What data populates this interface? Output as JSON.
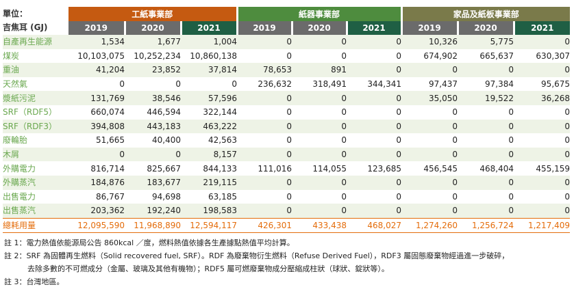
{
  "unit_label_1": "單位：",
  "unit_label_2": "吉焦耳 (GJ)",
  "colors": {
    "paper_header": "#c55a11",
    "carton_header": "#4e8c3e",
    "household_header": "#7a7a4a",
    "year_light": "#6b6b6b",
    "year_dark": "#1f5f44",
    "row_label": "#6aa84f",
    "total": "#e46c0a",
    "alt_row": "#eef3e6"
  },
  "divisions": [
    {
      "name": "工紙事業部",
      "years": [
        "2019",
        "2020",
        "2021"
      ]
    },
    {
      "name": "紙器事業部",
      "years": [
        "2019",
        "2020",
        "2021"
      ]
    },
    {
      "name": "家品及紙板事業部",
      "years": [
        "2019",
        "2020",
        "2021"
      ]
    }
  ],
  "rows": [
    {
      "label": "自產再生能源",
      "values": [
        "1,534",
        "1,677",
        "1,004",
        "0",
        "0",
        "0",
        "10,326",
        "5,775",
        "0"
      ]
    },
    {
      "label": "煤炭",
      "values": [
        "10,103,075",
        "10,252,234",
        "10,860,138",
        "0",
        "0",
        "0",
        "674,902",
        "665,637",
        "630,307"
      ]
    },
    {
      "label": "重油",
      "values": [
        "41,204",
        "23,852",
        "37,814",
        "78,653",
        "891",
        "0",
        "0",
        "0",
        "0"
      ]
    },
    {
      "label": "天然氣",
      "values": [
        "0",
        "0",
        "0",
        "236,632",
        "318,491",
        "344,341",
        "97,437",
        "97,384",
        "95,675"
      ]
    },
    {
      "label": "漿紙污泥",
      "values": [
        "131,769",
        "38,546",
        "57,596",
        "0",
        "0",
        "0",
        "35,050",
        "19,522",
        "36,268"
      ]
    },
    {
      "label": "SRF（RDF5）",
      "values": [
        "660,074",
        "446,594",
        "322,144",
        "0",
        "0",
        "0",
        "0",
        "0",
        "0"
      ]
    },
    {
      "label": "SRF（RDF3）",
      "values": [
        "394,808",
        "443,183",
        "463,222",
        "0",
        "0",
        "0",
        "0",
        "0",
        "0"
      ]
    },
    {
      "label": "廢輪胎",
      "values": [
        "51,665",
        "40,400",
        "42,563",
        "0",
        "0",
        "0",
        "0",
        "0",
        "0"
      ]
    },
    {
      "label": "木屑",
      "values": [
        "0",
        "0",
        "8,157",
        "0",
        "0",
        "0",
        "0",
        "0",
        "0"
      ]
    },
    {
      "label": "外購電力",
      "values": [
        "816,714",
        "825,667",
        "844,133",
        "111,016",
        "114,055",
        "123,685",
        "456,545",
        "468,404",
        "455,159"
      ]
    },
    {
      "label": "外購蒸汽",
      "values": [
        "184,876",
        "183,677",
        "219,115",
        "0",
        "0",
        "0",
        "0",
        "0",
        "0"
      ]
    },
    {
      "label": "出售電力",
      "values": [
        "86,767",
        "94,698",
        "63,185",
        "0",
        "0",
        "0",
        "0",
        "0",
        "0"
      ]
    },
    {
      "label": "出售蒸汽",
      "values": [
        "203,362",
        "192,240",
        "198,583",
        "0",
        "0",
        "0",
        "0",
        "0",
        "0"
      ]
    }
  ],
  "total": {
    "label": "總耗用量",
    "values": [
      "12,095,590",
      "11,968,890",
      "12,594,117",
      "426,301",
      "433,438",
      "468,027",
      "1,274,260",
      "1,256,724",
      "1,217,409"
    ]
  },
  "notes": [
    "註 1：電力熱值依能源局公告 860kcal ／度，燃料熱值依據各生產據點熱值平均計算。",
    "註 2：SRF 為固體再生燃料（Solid recovered fuel, SRF）。RDF 為廢棄物衍生燃料（Refuse Derived Fuel），RDF3 屬固態廢棄物經過進一步破碎，",
    "去除多數的不可燃成分（金屬、玻璃及其他有機物）；RDF5 屬可燃廢棄物成分壓縮成柱狀（球狀、錠狀等）。",
    "註 3：台灣地區。"
  ]
}
